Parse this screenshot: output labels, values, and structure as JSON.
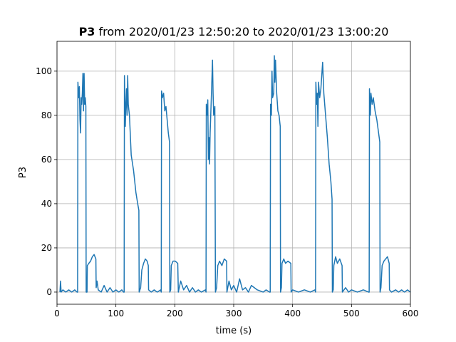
{
  "chart_data": {
    "type": "line",
    "title_parts": [
      "P3",
      "from 2020/01/23 12:50:20 to 2020/01/23 13:00:20"
    ],
    "xlabel": "time (s)",
    "ylabel": "P3",
    "xlim": [
      0,
      600
    ],
    "xticks": [
      0,
      100,
      200,
      300,
      400,
      500,
      600
    ],
    "ylim": [
      -5.5,
      113.5
    ],
    "yticks": [
      0,
      20,
      40,
      60,
      80,
      100
    ],
    "grid": true,
    "series": [
      {
        "name": "P3",
        "color": "#1f77b4",
        "x": [
          5,
          6,
          7,
          10,
          15,
          20,
          25,
          30,
          34,
          35,
          35.5,
          37,
          38,
          39,
          40,
          41,
          42,
          43,
          44,
          45,
          46,
          47,
          48,
          49,
          49.5,
          51,
          51.5,
          54,
          57,
          60,
          63,
          66,
          66.5,
          68,
          70,
          75,
          80,
          85,
          90,
          95,
          100,
          105,
          110,
          113,
          114,
          114.5,
          116,
          117,
          118,
          119,
          120,
          121,
          123,
          126,
          130,
          134,
          137,
          139,
          139.5,
          142,
          144,
          147,
          150,
          153,
          155,
          155.5,
          160,
          165,
          170,
          176,
          177,
          177.5,
          179,
          181,
          183,
          185,
          187,
          189,
          191,
          191.5,
          193,
          194,
          197,
          201,
          205,
          206,
          210,
          215,
          220,
          225,
          230,
          235,
          240,
          245,
          252,
          253,
          253.5,
          255,
          256,
          257,
          258,
          259,
          260,
          262,
          264,
          265,
          266,
          268,
          269,
          271,
          273,
          276,
          280,
          284,
          288,
          288.5,
          292,
          296,
          300,
          305,
          310,
          315,
          320,
          325,
          330,
          340,
          350,
          355,
          361,
          362,
          362.5,
          364,
          365,
          366,
          368,
          369,
          370,
          371,
          373,
          375,
          377,
          379,
          379.5,
          381,
          382,
          385,
          388,
          392,
          397,
          397.5,
          400,
          410,
          420,
          430,
          438,
          439,
          439.5,
          441,
          442,
          443,
          444,
          446,
          448,
          450,
          451,
          453,
          456,
          459,
          462,
          465,
          467,
          467.5,
          469,
          470,
          473,
          476,
          480,
          484,
          484.5,
          490,
          495,
          500,
          510,
          520,
          529,
          530,
          530.5,
          532,
          533,
          535,
          537,
          540,
          543,
          546,
          548,
          548.5,
          550,
          552,
          555,
          558,
          561,
          564,
          564.5,
          568,
          575,
          580,
          585,
          590,
          595,
          600
        ],
        "values": [
          0,
          5,
          0,
          1,
          0,
          1,
          0,
          1,
          0,
          0,
          95,
          88,
          93,
          78,
          72,
          88,
          85,
          90,
          99,
          82,
          99,
          85,
          88,
          84,
          0,
          0,
          12,
          13,
          14,
          16,
          17,
          15,
          2,
          5,
          1,
          0,
          3,
          0,
          2,
          0,
          1,
          0,
          1,
          0,
          0,
          98,
          75,
          85,
          92,
          80,
          98,
          85,
          80,
          62,
          55,
          45,
          40,
          37,
          0,
          2,
          10,
          13,
          15,
          14,
          12,
          1,
          0,
          1,
          0,
          1,
          0,
          91,
          88,
          90,
          82,
          84,
          78,
          72,
          68,
          0,
          1,
          12,
          14,
          14,
          13,
          0,
          5,
          1,
          3,
          0,
          2,
          0,
          1,
          0,
          1,
          0,
          85,
          80,
          87,
          60,
          70,
          58,
          72,
          88,
          105,
          90,
          80,
          84,
          0,
          2,
          12,
          14,
          12,
          15,
          14,
          0,
          5,
          1,
          3,
          0,
          6,
          1,
          2,
          0,
          3,
          1,
          0,
          1,
          0,
          0,
          85,
          80,
          100,
          88,
          90,
          107,
          95,
          105,
          90,
          82,
          80,
          75,
          0,
          2,
          13,
          15,
          13,
          14,
          13,
          0,
          1,
          0,
          1,
          0,
          1,
          0,
          95,
          85,
          90,
          75,
          95,
          88,
          92,
          100,
          104,
          90,
          80,
          70,
          58,
          50,
          42,
          0,
          1,
          12,
          16,
          13,
          15,
          12,
          0,
          2,
          0,
          1,
          0,
          1,
          0,
          0,
          92,
          80,
          90,
          85,
          88,
          82,
          78,
          72,
          68,
          0,
          2,
          12,
          14,
          15,
          16,
          13,
          1,
          0,
          1,
          0,
          1,
          0,
          1,
          0
        ]
      }
    ]
  }
}
